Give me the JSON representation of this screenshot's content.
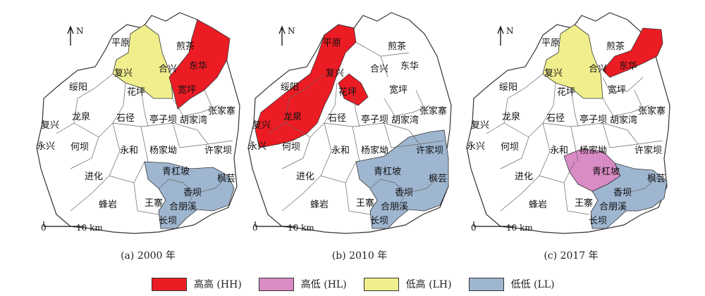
{
  "north_label": "N",
  "scale": {
    "zero": "0",
    "length": "10 km"
  },
  "colors": {
    "HH": "#ec1c24",
    "HL": "#d98bc4",
    "LH": "#f1ef8d",
    "LL": "#9fb6d0"
  },
  "panels": [
    {
      "caption": "(a) 2000 年",
      "towns": [
        "平原",
        "煎茶",
        "合兴",
        "东华",
        "复兴",
        "绥阳",
        "花坪",
        "宽坪",
        "张家寨",
        "龙泉",
        "石径",
        "亭子坝",
        "胡家湾",
        "复兴",
        "永兴",
        "何坝",
        "永和",
        "杨家坳",
        "许家坝",
        "青杠坡",
        "枫芸",
        "香坝",
        "进化",
        "蜂岩",
        "王寨",
        "合朋溪",
        "长坝"
      ],
      "clusters": {
        "HH": [
          "煎茶",
          "合兴",
          "东华",
          "宽坪"
        ],
        "HL": [],
        "LH": [
          "平原",
          "复兴",
          "花坪"
        ],
        "LL": [
          "青杠坡",
          "香坝",
          "枫芸",
          "合朋溪",
          "长坝"
        ]
      }
    },
    {
      "caption": "(b) 2010 年",
      "towns": [
        "平原",
        "煎茶",
        "合兴",
        "东华",
        "复兴",
        "绥阳",
        "花坪",
        "宽坪",
        "张家寨",
        "龙泉",
        "石径",
        "亭子坝",
        "胡家湾",
        "复兴",
        "永兴",
        "何坝",
        "永和",
        "杨家坳",
        "许家坝",
        "青杠坡",
        "枫芸",
        "香坝",
        "进化",
        "蜂岩",
        "王寨",
        "合朋溪",
        "长坝"
      ],
      "clusters": {
        "HH": [
          "平原",
          "绥阳",
          "花坪",
          "龙泉",
          "复兴"
        ],
        "HL": [],
        "LH": [],
        "LL": [
          "许家坝",
          "青杠坡",
          "香坝",
          "枫芸",
          "合朋溪",
          "长坝"
        ]
      }
    },
    {
      "caption": "(c) 2017 年",
      "towns": [
        "平原",
        "煎茶",
        "合兴",
        "东华",
        "复兴",
        "绥阳",
        "花坪",
        "宽坪",
        "张家寨",
        "龙泉",
        "石径",
        "亭子坝",
        "胡家湾",
        "复兴",
        "永兴",
        "何坝",
        "永和",
        "杨家坳",
        "许家坝",
        "青杠坡",
        "枫芸",
        "香坝",
        "进化",
        "蜂岩",
        "王寨",
        "合朋溪",
        "长坝"
      ],
      "clusters": {
        "HH": [
          "合兴",
          "东华"
        ],
        "HL": [
          "青杠坡"
        ],
        "LH": [
          "平原",
          "复兴",
          "花坪"
        ],
        "LL": [
          "香坝",
          "枫芸",
          "合朋溪",
          "长坝"
        ]
      }
    }
  ],
  "legend": [
    {
      "key": "HH",
      "label": "高高 (HH)"
    },
    {
      "key": "HL",
      "label": "高低 (HL)"
    },
    {
      "key": "LH",
      "label": "低高 (LH)"
    },
    {
      "key": "LL",
      "label": "低低 (LL)"
    }
  ]
}
